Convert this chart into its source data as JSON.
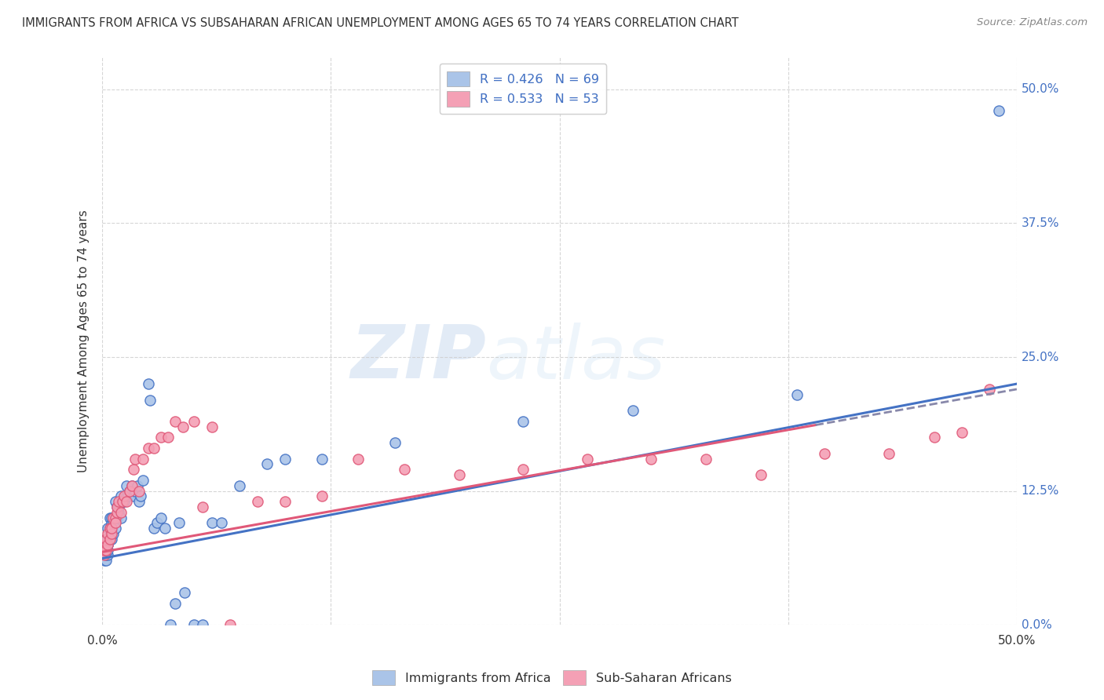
{
  "title": "IMMIGRANTS FROM AFRICA VS SUBSAHARAN AFRICAN UNEMPLOYMENT AMONG AGES 65 TO 74 YEARS CORRELATION CHART",
  "source": "Source: ZipAtlas.com",
  "ylabel": "Unemployment Among Ages 65 to 74 years",
  "ytick_labels": [
    "0.0%",
    "12.5%",
    "25.0%",
    "37.5%",
    "50.0%"
  ],
  "ytick_values": [
    0.0,
    0.125,
    0.25,
    0.375,
    0.5
  ],
  "xtick_labels": [
    "0.0%",
    "12.5%",
    "25.0%",
    "37.5%",
    "50.0%"
  ],
  "xtick_values": [
    0.0,
    0.125,
    0.25,
    0.375,
    0.5
  ],
  "xlim": [
    0.0,
    0.5
  ],
  "ylim": [
    0.0,
    0.53
  ],
  "legend_entries": [
    {
      "label": "R = 0.426   N = 69"
    },
    {
      "label": "R = 0.533   N = 53"
    }
  ],
  "series1_color": "#aac4e8",
  "series2_color": "#f4a0b5",
  "line1_color": "#4472c4",
  "line2_color": "#e05878",
  "line_dashed_color": "#8888aa",
  "background_color": "#ffffff",
  "grid_color": "#cccccc",
  "title_color": "#333333",
  "right_axis_color": "#4472c4",
  "watermark_text": "ZIPatlas",
  "series1_x": [
    0.001,
    0.001,
    0.001,
    0.001,
    0.002,
    0.002,
    0.002,
    0.002,
    0.002,
    0.003,
    0.003,
    0.003,
    0.003,
    0.003,
    0.003,
    0.004,
    0.004,
    0.004,
    0.005,
    0.005,
    0.005,
    0.005,
    0.006,
    0.006,
    0.007,
    0.007,
    0.007,
    0.008,
    0.008,
    0.009,
    0.009,
    0.01,
    0.01,
    0.011,
    0.012,
    0.013,
    0.013,
    0.014,
    0.015,
    0.016,
    0.017,
    0.018,
    0.019,
    0.02,
    0.021,
    0.022,
    0.025,
    0.026,
    0.028,
    0.03,
    0.032,
    0.034,
    0.037,
    0.04,
    0.042,
    0.045,
    0.05,
    0.055,
    0.06,
    0.065,
    0.075,
    0.09,
    0.1,
    0.12,
    0.16,
    0.23,
    0.29,
    0.38,
    0.49
  ],
  "series1_y": [
    0.065,
    0.075,
    0.06,
    0.07,
    0.06,
    0.07,
    0.075,
    0.065,
    0.08,
    0.065,
    0.07,
    0.075,
    0.08,
    0.09,
    0.075,
    0.08,
    0.09,
    0.1,
    0.08,
    0.085,
    0.095,
    0.1,
    0.085,
    0.095,
    0.09,
    0.1,
    0.115,
    0.1,
    0.11,
    0.105,
    0.11,
    0.1,
    0.12,
    0.115,
    0.115,
    0.12,
    0.13,
    0.12,
    0.125,
    0.13,
    0.12,
    0.125,
    0.13,
    0.115,
    0.12,
    0.135,
    0.225,
    0.21,
    0.09,
    0.095,
    0.1,
    0.09,
    0.0,
    0.02,
    0.095,
    0.03,
    0.0,
    0.0,
    0.095,
    0.095,
    0.13,
    0.15,
    0.155,
    0.155,
    0.17,
    0.19,
    0.2,
    0.215,
    0.48
  ],
  "series2_x": [
    0.001,
    0.001,
    0.001,
    0.002,
    0.002,
    0.003,
    0.003,
    0.004,
    0.004,
    0.005,
    0.005,
    0.006,
    0.007,
    0.007,
    0.008,
    0.008,
    0.009,
    0.01,
    0.011,
    0.012,
    0.013,
    0.015,
    0.016,
    0.017,
    0.018,
    0.02,
    0.022,
    0.025,
    0.028,
    0.032,
    0.036,
    0.04,
    0.044,
    0.05,
    0.055,
    0.06,
    0.07,
    0.085,
    0.1,
    0.12,
    0.14,
    0.165,
    0.195,
    0.23,
    0.265,
    0.3,
    0.33,
    0.36,
    0.395,
    0.43,
    0.455,
    0.47,
    0.485
  ],
  "series2_y": [
    0.065,
    0.075,
    0.07,
    0.07,
    0.08,
    0.075,
    0.085,
    0.09,
    0.08,
    0.085,
    0.09,
    0.1,
    0.1,
    0.095,
    0.105,
    0.11,
    0.115,
    0.105,
    0.115,
    0.12,
    0.115,
    0.125,
    0.13,
    0.145,
    0.155,
    0.125,
    0.155,
    0.165,
    0.165,
    0.175,
    0.175,
    0.19,
    0.185,
    0.19,
    0.11,
    0.185,
    0.0,
    0.115,
    0.115,
    0.12,
    0.155,
    0.145,
    0.14,
    0.145,
    0.155,
    0.155,
    0.155,
    0.14,
    0.16,
    0.16,
    0.175,
    0.18,
    0.22
  ],
  "line1_x_start": 0.0,
  "line1_x_end": 0.5,
  "line1_y_start": 0.062,
  "line1_y_end": 0.225,
  "line2_x_start": 0.0,
  "line2_x_end": 0.5,
  "line2_y_start": 0.068,
  "line2_y_end": 0.22,
  "line2_solid_end_x": 0.39,
  "line2_dashed_start_x": 0.39
}
